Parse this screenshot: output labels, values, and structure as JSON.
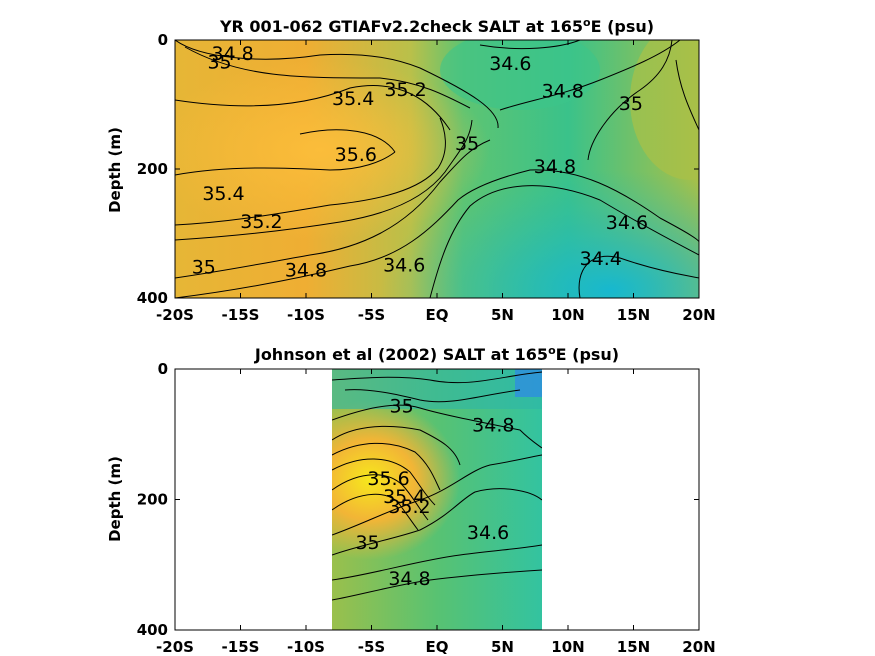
{
  "chart_data": [
    {
      "type": "contour",
      "title": "YR 001-062 GTIAFv2.2check SALT at 165",
      "title_degree": "o",
      "title_tail": "E (psu)",
      "ylabel": "Depth (m)",
      "xlabel": "",
      "x_ticks": [
        "-20S",
        "-15S",
        "-10S",
        "-5S",
        "EQ",
        "5N",
        "10N",
        "15N",
        "20N"
      ],
      "y_ticks": [
        "0",
        "200",
        "400"
      ],
      "xlim": [
        -20,
        20
      ],
      "ylim": [
        0,
        400
      ],
      "y_reversed": true,
      "data_extent": [
        -20,
        20
      ],
      "contour_labels": [
        {
          "text": "34.8",
          "x": -15.6,
          "y": 20
        },
        {
          "text": "35",
          "x": -16.6,
          "y": 33
        },
        {
          "text": "34.6",
          "x": 5.6,
          "y": 36
        },
        {
          "text": "35.2",
          "x": -2.4,
          "y": 76
        },
        {
          "text": "35.4",
          "x": -6.4,
          "y": 90
        },
        {
          "text": "34.8",
          "x": 9.6,
          "y": 78
        },
        {
          "text": "35",
          "x": 14.8,
          "y": 98
        },
        {
          "text": "35.6",
          "x": -6.2,
          "y": 177
        },
        {
          "text": "35",
          "x": 2.3,
          "y": 160
        },
        {
          "text": "34.8",
          "x": 9.0,
          "y": 195
        },
        {
          "text": "35.4",
          "x": -16.3,
          "y": 237
        },
        {
          "text": "35.2",
          "x": -13.4,
          "y": 281
        },
        {
          "text": "34.6",
          "x": 14.5,
          "y": 282
        },
        {
          "text": "34.6",
          "x": -2.5,
          "y": 348
        },
        {
          "text": "34.4",
          "x": 12.5,
          "y": 338
        },
        {
          "text": "34.8",
          "x": -10.0,
          "y": 356
        },
        {
          "text": "35",
          "x": -17.8,
          "y": 351
        }
      ]
    },
    {
      "type": "contour",
      "title": "Johnson et al (2002) SALT at 165",
      "title_degree": "o",
      "title_tail": "E (psu)",
      "ylabel": "Depth (m)",
      "xlabel": "",
      "x_ticks": [
        "-20S",
        "-15S",
        "-10S",
        "-5S",
        "EQ",
        "5N",
        "10N",
        "15N",
        "20N"
      ],
      "y_ticks": [
        "0",
        "200",
        "400"
      ],
      "xlim": [
        -20,
        20
      ],
      "ylim": [
        0,
        400
      ],
      "y_reversed": true,
      "data_extent": [
        -8,
        8
      ],
      "contour_labels": [
        {
          "text": "35",
          "x": -2.7,
          "y": 56
        },
        {
          "text": "34.8",
          "x": 4.3,
          "y": 85
        },
        {
          "text": "35.6",
          "x": -3.7,
          "y": 167
        },
        {
          "text": "35.4",
          "x": -2.5,
          "y": 195
        },
        {
          "text": "35.2",
          "x": -2.1,
          "y": 210
        },
        {
          "text": "35",
          "x": -5.3,
          "y": 265
        },
        {
          "text": "34.6",
          "x": 3.9,
          "y": 250
        },
        {
          "text": "34.8",
          "x": -2.1,
          "y": 320
        }
      ]
    }
  ]
}
